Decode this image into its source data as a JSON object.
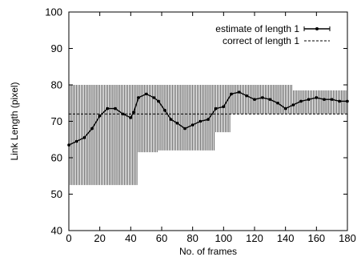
{
  "chart_data": {
    "type": "line",
    "xlabel": "No. of frames",
    "ylabel": "Link Length (pixel)",
    "xlim": [
      0,
      180
    ],
    "ylim": [
      40,
      100
    ],
    "xticks": [
      0,
      20,
      40,
      60,
      80,
      100,
      120,
      140,
      160,
      180
    ],
    "yticks": [
      40,
      50,
      60,
      70,
      80,
      90,
      100
    ],
    "grid": false,
    "legend_position": "top-right",
    "colors": {
      "series": "#000000",
      "background": "#ffffff"
    },
    "series": [
      {
        "name": "estimate of length 1",
        "style": "line-points-errorbars",
        "points": [
          {
            "x": 0,
            "y": 63.5,
            "lo": 52.5,
            "hi": 80
          },
          {
            "x": 5,
            "y": 64.5,
            "lo": 52.5,
            "hi": 80
          },
          {
            "x": 10,
            "y": 65.5,
            "lo": 52.5,
            "hi": 80
          },
          {
            "x": 15,
            "y": 68,
            "lo": 52.5,
            "hi": 80
          },
          {
            "x": 20,
            "y": 71.5,
            "lo": 52.5,
            "hi": 80
          },
          {
            "x": 25,
            "y": 73.5,
            "lo": 52.5,
            "hi": 80
          },
          {
            "x": 30,
            "y": 73.5,
            "lo": 52.5,
            "hi": 80
          },
          {
            "x": 35,
            "y": 72,
            "lo": 52.5,
            "hi": 80
          },
          {
            "x": 40,
            "y": 71,
            "lo": 52.5,
            "hi": 80
          },
          {
            "x": 42,
            "y": 72.5,
            "lo": 52.5,
            "hi": 80
          },
          {
            "x": 45,
            "y": 76.5,
            "lo": 61.5,
            "hi": 80
          },
          {
            "x": 50,
            "y": 77.5,
            "lo": 61.5,
            "hi": 80
          },
          {
            "x": 55,
            "y": 76.5,
            "lo": 61.5,
            "hi": 80
          },
          {
            "x": 58,
            "y": 75.5,
            "lo": 62,
            "hi": 80
          },
          {
            "x": 62,
            "y": 73,
            "lo": 62,
            "hi": 80
          },
          {
            "x": 66,
            "y": 70.5,
            "lo": 62,
            "hi": 80
          },
          {
            "x": 70,
            "y": 69.5,
            "lo": 62,
            "hi": 80
          },
          {
            "x": 75,
            "y": 68,
            "lo": 62,
            "hi": 80
          },
          {
            "x": 80,
            "y": 69,
            "lo": 62,
            "hi": 80
          },
          {
            "x": 85,
            "y": 70,
            "lo": 62,
            "hi": 80
          },
          {
            "x": 90,
            "y": 70.5,
            "lo": 62,
            "hi": 80
          },
          {
            "x": 95,
            "y": 73.5,
            "lo": 67,
            "hi": 80
          },
          {
            "x": 100,
            "y": 74,
            "lo": 67,
            "hi": 80
          },
          {
            "x": 105,
            "y": 77.5,
            "lo": 72,
            "hi": 80
          },
          {
            "x": 110,
            "y": 78,
            "lo": 72,
            "hi": 80
          },
          {
            "x": 115,
            "y": 77,
            "lo": 72,
            "hi": 80
          },
          {
            "x": 120,
            "y": 76,
            "lo": 72,
            "hi": 80
          },
          {
            "x": 125,
            "y": 76.5,
            "lo": 72,
            "hi": 80
          },
          {
            "x": 130,
            "y": 76,
            "lo": 72,
            "hi": 80
          },
          {
            "x": 135,
            "y": 75,
            "lo": 72,
            "hi": 80
          },
          {
            "x": 140,
            "y": 73.5,
            "lo": 72,
            "hi": 80
          },
          {
            "x": 145,
            "y": 74.5,
            "lo": 72,
            "hi": 78.5
          },
          {
            "x": 150,
            "y": 75.5,
            "lo": 72,
            "hi": 78.5
          },
          {
            "x": 155,
            "y": 76,
            "lo": 72,
            "hi": 78.5
          },
          {
            "x": 160,
            "y": 76.5,
            "lo": 72,
            "hi": 78.5
          },
          {
            "x": 165,
            "y": 76,
            "lo": 72,
            "hi": 78.5
          },
          {
            "x": 170,
            "y": 76,
            "lo": 72,
            "hi": 78.5
          },
          {
            "x": 175,
            "y": 75.5,
            "lo": 72,
            "hi": 78.5
          },
          {
            "x": 180,
            "y": 75.5,
            "lo": 72,
            "hi": 78.5
          }
        ]
      },
      {
        "name": "correct of length 1",
        "style": "dashed",
        "points": [
          {
            "x": 0,
            "y": 72
          },
          {
            "x": 180,
            "y": 72
          }
        ]
      }
    ]
  }
}
